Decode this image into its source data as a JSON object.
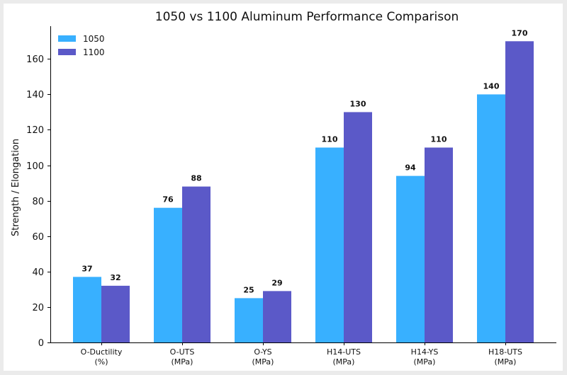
{
  "chart_data": {
    "type": "bar",
    "title": "1050 vs 1100 Aluminum Performance Comparison",
    "xlabel": "",
    "ylabel": "Strength / Elongation",
    "categories": [
      [
        "O-Ductility",
        "(%)"
      ],
      [
        "O-UTS",
        "(MPa)"
      ],
      [
        "O-YS",
        "(MPa)"
      ],
      [
        "H14-UTS",
        "(MPa)"
      ],
      [
        "H14-YS",
        "(MPa)"
      ],
      [
        "H18-UTS",
        "(MPa)"
      ]
    ],
    "series": [
      {
        "name": "1050",
        "color": "#38b0ff",
        "values": [
          37,
          76,
          25,
          110,
          94,
          140
        ]
      },
      {
        "name": "1100",
        "color": "#5b59c8",
        "values": [
          32,
          88,
          29,
          130,
          110,
          170
        ]
      }
    ],
    "ylim": [
      0,
      178.5
    ],
    "yticks": [
      0,
      20,
      40,
      60,
      80,
      100,
      120,
      140,
      160
    ],
    "legend_position": "top-left",
    "grid": false
  }
}
